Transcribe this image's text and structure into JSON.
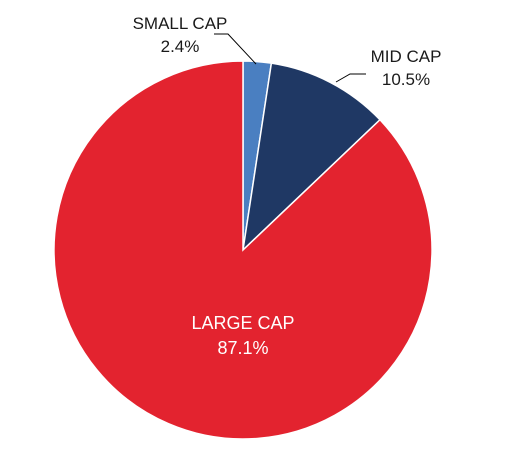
{
  "chart_data": {
    "type": "pie",
    "title": "",
    "slices": [
      {
        "label": "SMALL CAP",
        "value": 2.4,
        "value_label": "2.4%",
        "color": "#4a7fc1"
      },
      {
        "label": "MID CAP",
        "value": 10.5,
        "value_label": "10.5%",
        "color": "#1f3864"
      },
      {
        "label": "LARGE CAP",
        "value": 87.1,
        "value_label": "87.1%",
        "color": "#e3232f"
      }
    ],
    "start_angle": "12 o'clock",
    "direction": "clockwise",
    "legend": "none"
  }
}
